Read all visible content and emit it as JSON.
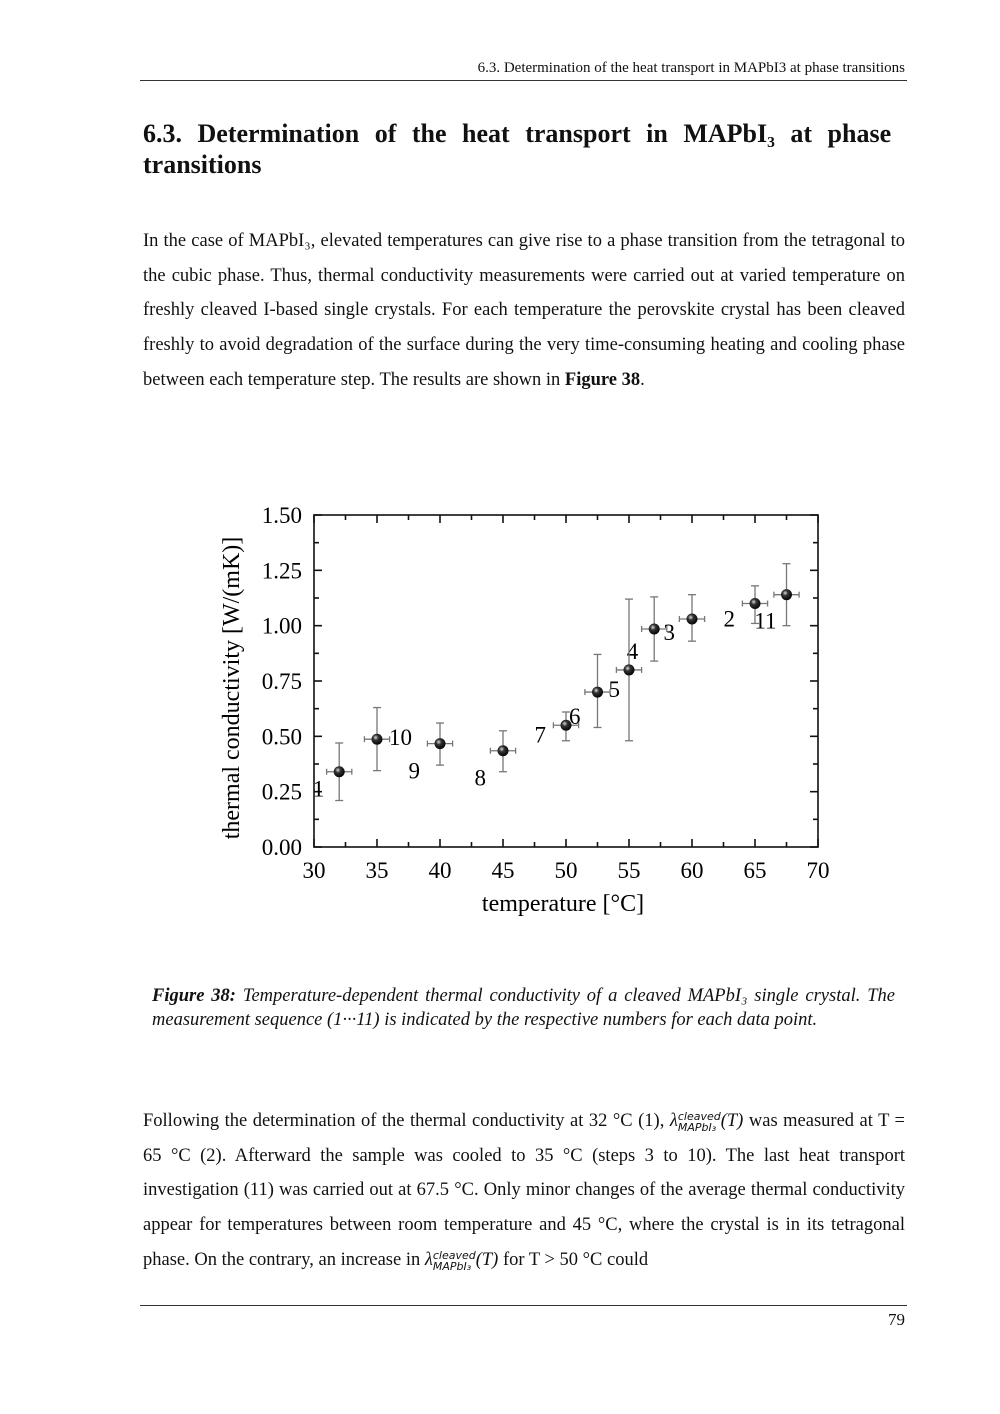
{
  "header": {
    "running_title": "6.3. Determination of the heat transport in MAPbI3 at phase transitions"
  },
  "section": {
    "title_line1": "6.3. Determination of the heat transport in MAPbI₃ at phase",
    "title_line2": "transitions"
  },
  "para1": {
    "text_before": "In the case of MAPbI₃, elevated temperatures can give rise to a phase transition from the tetragonal to the cubic phase. Thus, thermal conductivity measurements were carried out at varied temperature on freshly cleaved I-based single crystals. For each temperature the perovskite crystal has been cleaved freshly to avoid degradation of the surface during the very time-consuming heating and cooling phase between each temperature step. The results are shown in ",
    "figure_ref": "Figure 38",
    "text_after": "."
  },
  "caption": {
    "label": "Figure 38:",
    "text": " Temperature-dependent thermal conductivity of a cleaved MAPbI₃ single crystal. The measurement sequence (1···11) is indicated by the respective numbers for each data point."
  },
  "para2": {
    "t1": "Following the determination of the thermal conductivity at 32 °C (1), ",
    "lambda": "λ",
    "sup": "cleaved",
    "sub": "MAPbI₃",
    "arg": "(T)",
    "t2": " was measured at T = 65 °C (2). Afterward the sample was cooled to 35 °C (steps 3 to 10). The last heat transport investigation (11) was carried out at 67.5 °C. Only minor changes of the average thermal conductivity appear for temperatures between room temperature and 45 °C, where the crystal is in its tetragonal phase. On the contrary, an increase in ",
    "t3": " for T > 50 °C could"
  },
  "page_number": "79",
  "chart_data": {
    "type": "scatter",
    "xlabel": "temperature [°C]",
    "ylabel": "thermal conductivity [W/(mK)]",
    "xlim": [
      30,
      70
    ],
    "ylim": [
      0,
      1.5
    ],
    "xticks": [
      "30",
      "35",
      "40",
      "45",
      "50",
      "55",
      "60",
      "65",
      "70"
    ],
    "yticks": [
      "0.00",
      "0.25",
      "0.50",
      "0.75",
      "1.00",
      "1.25",
      "1.50"
    ],
    "grid": false,
    "marker_color": "#000000",
    "errorbar_color": "#777777",
    "points": [
      {
        "label": "1",
        "x": 32,
        "y": 0.34,
        "ylo": 0.21,
        "yhi": 0.47,
        "xerr": 1
      },
      {
        "label": "2",
        "x": 65,
        "y": 1.1,
        "ylo": 1.01,
        "yhi": 1.18,
        "xerr": 1
      },
      {
        "label": "3",
        "x": 60,
        "y": 1.03,
        "ylo": 0.93,
        "yhi": 1.14,
        "xerr": 1
      },
      {
        "label": "4",
        "x": 57,
        "y": 0.985,
        "ylo": 0.84,
        "yhi": 1.13,
        "xerr": 1
      },
      {
        "label": "5",
        "x": 55,
        "y": 0.8,
        "ylo": 0.48,
        "yhi": 1.12,
        "xerr": 1
      },
      {
        "label": "6",
        "x": 52.5,
        "y": 0.7,
        "ylo": 0.54,
        "yhi": 0.87,
        "xerr": 1
      },
      {
        "label": "7",
        "x": 50,
        "y": 0.55,
        "ylo": 0.48,
        "yhi": 0.61,
        "xerr": 1
      },
      {
        "label": "8",
        "x": 45,
        "y": 0.435,
        "ylo": 0.34,
        "yhi": 0.525,
        "xerr": 1
      },
      {
        "label": "9",
        "x": 40,
        "y": 0.467,
        "ylo": 0.37,
        "yhi": 0.56,
        "xerr": 1
      },
      {
        "label": "10",
        "x": 35,
        "y": 0.487,
        "ylo": 0.345,
        "yhi": 0.63,
        "xerr": 1
      },
      {
        "label": "11",
        "x": 67.5,
        "y": 1.14,
        "ylo": 1.0,
        "yhi": 1.28,
        "xerr": 1
      }
    ]
  }
}
